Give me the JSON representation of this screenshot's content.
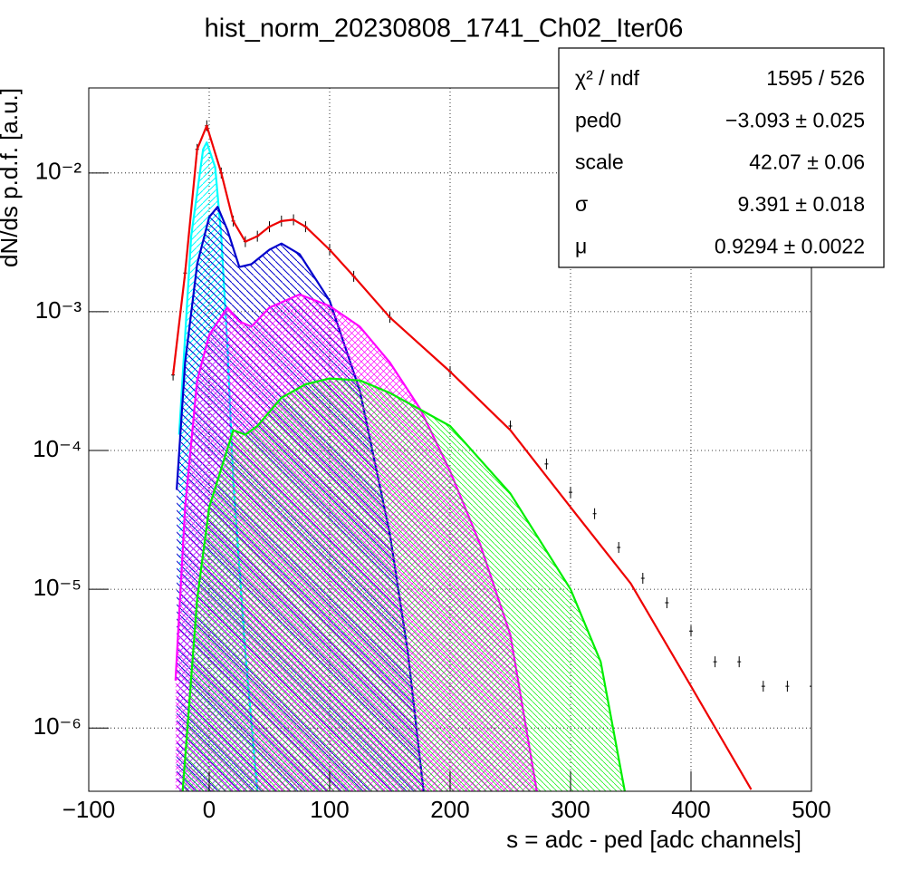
{
  "chart_data": {
    "type": "line",
    "title": "hist_norm_20230808_1741_Ch02_Iter06",
    "x_label": "s = adc - ped [adc channels]",
    "y_label": "dN/ds p.d.f. [a.u.]",
    "xlim": [
      -100,
      500
    ],
    "xticks": [
      {
        "value": -100,
        "label": "−100"
      },
      0,
      100,
      200,
      300,
      400,
      500
    ],
    "ylim": [
      3.5e-07,
      0.041
    ],
    "log_y": true,
    "yticks": [
      {
        "value": 1e-06,
        "label": "10⁻⁶"
      },
      {
        "value": 1e-05,
        "label": "10⁻⁵"
      },
      {
        "value": 0.0001,
        "label": "10⁻⁴"
      },
      {
        "value": 0.001,
        "label": "10⁻³"
      },
      {
        "value": 0.01,
        "label": "10⁻²"
      }
    ],
    "grid": true,
    "stats": [
      {
        "label": "χ² / ndf",
        "value": "1595 / 526"
      },
      {
        "label": "ped0",
        "value": "−3.093 ± 0.025"
      },
      {
        "label": "scale",
        "value": "42.07 ± 0.06"
      },
      {
        "label": "σ",
        "value": "9.391 ± 0.018"
      },
      {
        "label": "μ",
        "value": "0.9294  ± 0.0022"
      }
    ],
    "series": [
      {
        "color": "#00ffff",
        "style": "line",
        "hatch": "fwd",
        "x": [
          -25,
          -15,
          -5,
          -2,
          5,
          10,
          15,
          20,
          30,
          40
        ],
        "values": [
          0.00013,
          0.0035,
          0.0148,
          0.0166,
          0.011,
          0.0035,
          0.00058,
          6e-05,
          3.5e-06,
          3.5e-07
        ]
      },
      {
        "color": "#0000cc",
        "style": "line",
        "hatch": "back",
        "x": [
          -27,
          -20,
          -10,
          0,
          7,
          15,
          25,
          35,
          50,
          60,
          75,
          100,
          125,
          150,
          165,
          178
        ],
        "values": [
          5.2e-05,
          0.00043,
          0.0022,
          0.0048,
          0.0057,
          0.0039,
          0.0021,
          0.0022,
          0.0028,
          0.0031,
          0.0026,
          0.0012,
          0.00027,
          2.5e-05,
          3.5e-06,
          3.5e-07
        ]
      },
      {
        "color": "#ff00ff",
        "style": "line",
        "hatch": "cross",
        "x": [
          -28,
          -20,
          -10,
          0,
          15,
          25,
          35,
          50,
          75,
          100,
          125,
          150,
          175,
          200,
          225,
          250,
          272
        ],
        "values": [
          2.2e-06,
          3.9e-05,
          0.00032,
          0.00068,
          0.00107,
          0.00085,
          0.00078,
          0.00107,
          0.00133,
          0.0011,
          0.00078,
          0.00043,
          0.0002,
          7.1e-05,
          2.1e-05,
          4.7e-06,
          3.5e-07
        ]
      },
      {
        "color": "#00ee00",
        "style": "line",
        "hatch": "fine",
        "x": [
          -22,
          -10,
          0,
          20,
          30,
          40,
          60,
          80,
          100,
          125,
          150,
          200,
          250,
          300,
          325,
          345
        ],
        "values": [
          3.5e-07,
          8.5e-06,
          3.9e-05,
          0.00014,
          0.00013,
          0.00015,
          0.00024,
          0.0003,
          0.00033,
          0.00032,
          0.00026,
          0.00015,
          4.9e-05,
          1e-05,
          3e-06,
          3.5e-07
        ]
      },
      {
        "color": "#000000",
        "style": "points",
        "x": [
          -30,
          -20,
          -10,
          -2,
          10,
          20,
          30,
          40,
          50,
          60,
          70,
          80,
          100,
          120,
          150,
          200,
          250,
          280,
          300,
          320,
          340,
          360,
          380,
          400,
          420,
          440,
          460,
          480,
          500
        ],
        "values": [
          0.00035,
          0.0019,
          0.0148,
          0.0219,
          0.01,
          0.0045,
          0.0032,
          0.0035,
          0.0041,
          0.0045,
          0.0046,
          0.0041,
          0.0028,
          0.0018,
          0.00091,
          0.00037,
          0.00015,
          8e-05,
          5e-05,
          3.5e-05,
          2e-05,
          1.2e-05,
          8e-06,
          5e-06,
          3e-06,
          3e-06,
          2e-06,
          2e-06,
          2e-06
        ]
      },
      {
        "color": "#ee0000",
        "style": "line",
        "x": [
          -30,
          -20,
          -10,
          -2,
          10,
          20,
          30,
          40,
          50,
          60,
          70,
          80,
          100,
          120,
          150,
          200,
          250,
          300,
          350,
          400,
          450
        ],
        "values": [
          0.00035,
          0.0019,
          0.0148,
          0.0219,
          0.01,
          0.0045,
          0.0032,
          0.0035,
          0.0041,
          0.0045,
          0.0046,
          0.0041,
          0.0028,
          0.0018,
          0.00091,
          0.00037,
          0.00014,
          3.9e-05,
          1.1e-05,
          2e-06,
          3.6e-07
        ]
      }
    ]
  }
}
